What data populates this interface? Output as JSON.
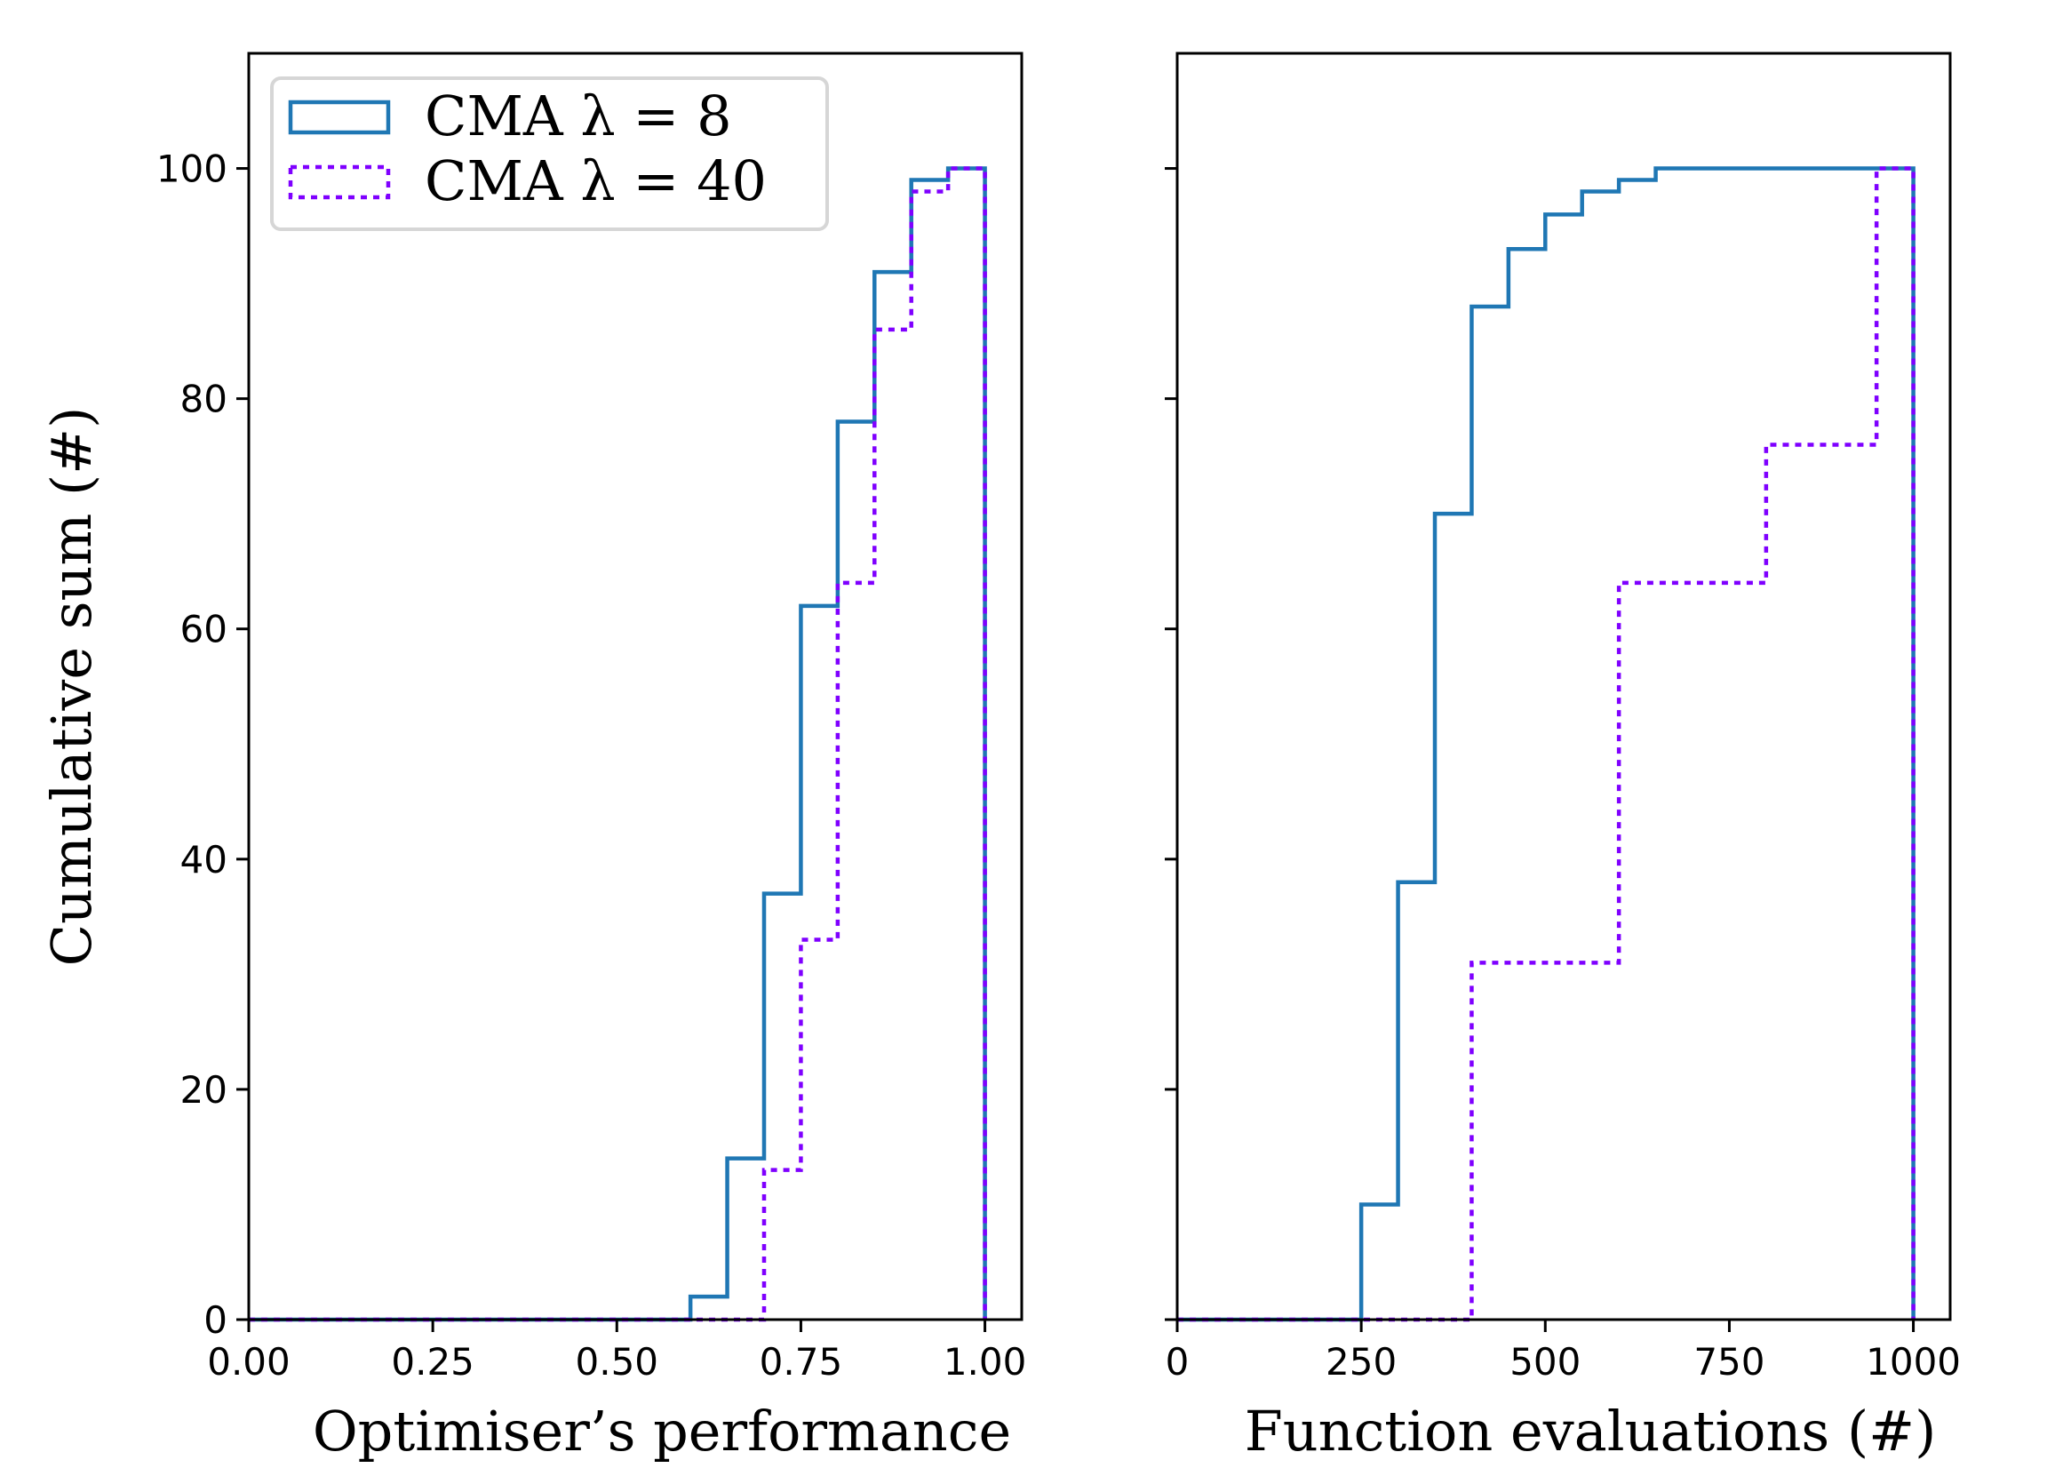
{
  "chart_data": [
    {
      "type": "step",
      "xlabel": "Optimiser’s performance",
      "ylabel": "Cumulative sum (#)",
      "xlim": [
        0,
        1.05
      ],
      "ylim": [
        0,
        110
      ],
      "xticks": [
        "0.00",
        "0.25",
        "0.50",
        "0.75",
        "1.00"
      ],
      "xtick_values": [
        0,
        0.25,
        0.5,
        0.75,
        1.0
      ],
      "yticks": [
        "0",
        "20",
        "40",
        "60",
        "80",
        "100"
      ],
      "ytick_values": [
        0,
        20,
        40,
        60,
        80,
        100
      ],
      "grid": false,
      "legend": {
        "placement": "top-left",
        "entries": [
          "CMA λ = 8",
          "CMA λ = 40"
        ]
      },
      "series": [
        {
          "name": "CMA λ = 8",
          "color": "#1f77b4",
          "style": "solid",
          "bin_edges": [
            0,
            0.05,
            0.1,
            0.15,
            0.2,
            0.25,
            0.3,
            0.35,
            0.4,
            0.45,
            0.5,
            0.55,
            0.6,
            0.65,
            0.7,
            0.75,
            0.8,
            0.85,
            0.9,
            0.95,
            1.0
          ],
          "values": [
            0,
            0,
            0,
            0,
            0,
            0,
            0,
            0,
            0,
            0,
            0,
            0,
            2,
            14,
            37,
            62,
            78,
            91,
            99,
            100
          ]
        },
        {
          "name": "CMA λ = 40",
          "color": "#7f00ff",
          "style": "dotted",
          "bin_edges": [
            0,
            0.05,
            0.1,
            0.15,
            0.2,
            0.25,
            0.3,
            0.35,
            0.4,
            0.45,
            0.5,
            0.55,
            0.6,
            0.65,
            0.7,
            0.75,
            0.8,
            0.85,
            0.9,
            0.95,
            1.0
          ],
          "values": [
            0,
            0,
            0,
            0,
            0,
            0,
            0,
            0,
            0,
            0,
            0,
            0,
            0,
            0,
            13,
            33,
            64,
            86,
            98,
            100
          ]
        }
      ]
    },
    {
      "type": "step",
      "xlabel": "Function evaluations (#)",
      "ylabel": "",
      "xlim": [
        0,
        1050
      ],
      "ylim": [
        0,
        110
      ],
      "xticks": [
        "0",
        "250",
        "500",
        "750",
        "1000"
      ],
      "xtick_values": [
        0,
        250,
        500,
        750,
        1000
      ],
      "yticks": [
        "",
        "",
        "",
        "",
        "",
        ""
      ],
      "ytick_values": [
        0,
        20,
        40,
        60,
        80,
        100
      ],
      "grid": false,
      "series": [
        {
          "name": "CMA λ = 8",
          "color": "#1f77b4",
          "style": "solid",
          "bin_edges": [
            0,
            50,
            100,
            150,
            200,
            250,
            300,
            350,
            400,
            450,
            500,
            550,
            600,
            650,
            700,
            750,
            800,
            850,
            900,
            950,
            1000
          ],
          "values": [
            0,
            0,
            0,
            0,
            0,
            10,
            38,
            70,
            88,
            93,
            96,
            98,
            99,
            100,
            100,
            100,
            100,
            100,
            100,
            100
          ]
        },
        {
          "name": "CMA λ = 40",
          "color": "#7f00ff",
          "style": "dotted",
          "bin_edges": [
            0,
            200,
            400,
            600,
            800,
            950,
            1000
          ],
          "values": [
            0,
            0,
            31,
            64,
            76,
            100
          ]
        }
      ]
    }
  ]
}
